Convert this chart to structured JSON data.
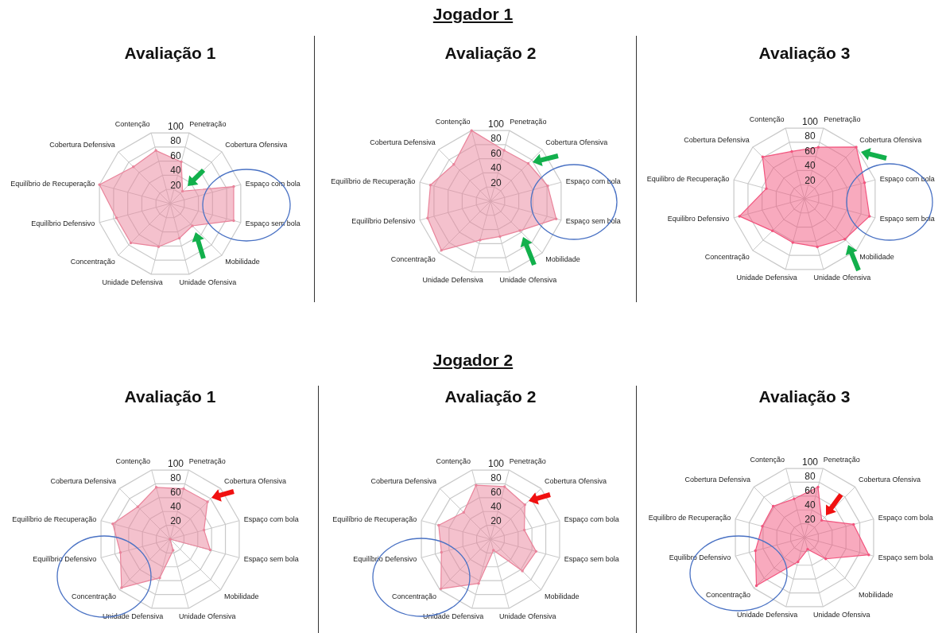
{
  "chart_data": [
    {
      "type": "radar",
      "title": "Avaliação 1",
      "annotations": [
        "Jogador 1"
      ],
      "categories": [
        "Contenção",
        "Penetração",
        "Cobertura Ofensiva",
        "Espaço com bola",
        "Espaço sem bola",
        "Mobilidade",
        "Unidade Ofensiva",
        "Unidade Defensiva",
        "Concentração",
        "Equilíbrio Defensivo",
        "Equilíbrio de Recuperação",
        "Cobertura Defensiva"
      ],
      "ylim": [
        0,
        100
      ],
      "yticks": [
        20,
        40,
        60,
        80,
        100
      ],
      "grid": true,
      "marker": "circle",
      "series": [
        {
          "color": "#e9849b",
          "values": [
            75,
            59,
            24,
            90,
            90,
            43,
            49,
            61,
            76,
            76,
            100,
            71
          ]
        }
      ]
    },
    {
      "type": "radar",
      "title": "Avaliação 2",
      "categories": [
        "Contenção",
        "Penetração",
        "Cobertura Ofensiva",
        "Espaço com bola",
        "Espaço sem bola",
        "Mobilidade",
        "Unidade Ofensiva",
        "Unidade Defensiva",
        "Concentração",
        "Equilíbrio Defensivo",
        "Equilíbrio de Recuperação",
        "Cobertura Defensiva"
      ],
      "ylim": [
        0,
        100
      ],
      "yticks": [
        20,
        40,
        60,
        80,
        100
      ],
      "grid": true,
      "marker": "circle",
      "series": [
        {
          "color": "#e9849b",
          "values": [
            100,
            72,
            73,
            81,
            93,
            57,
            50,
            55,
            95,
            89,
            85,
            71
          ]
        }
      ]
    },
    {
      "type": "radar",
      "title": "Avaliação 3",
      "categories": [
        "Contenção",
        "Penetração",
        "Cobertura Ofensiva",
        "Espaço com bola",
        "Espaço sem bola",
        "Mobilidade",
        "Unidade Ofensiva",
        "Unidade Defensiva",
        "Concentração",
        "Equilibro Defensivo",
        "Equilibro de Recuperação",
        "Cobertura Defensiva"
      ],
      "ylim": [
        0,
        100
      ],
      "yticks": [
        20,
        40,
        60,
        80,
        100
      ],
      "grid": true,
      "marker": "circle",
      "series": [
        {
          "color": "#f2557e",
          "values": [
            67,
            73,
            100,
            85,
            92,
            78,
            68,
            62,
            62,
            92,
            54,
            81
          ]
        }
      ]
    },
    {
      "type": "radar",
      "title": "Avaliação 1",
      "annotations": [
        "Jogador 2"
      ],
      "categories": [
        "Contenção",
        "Penetração",
        "Cobertura Ofensiva",
        "Espaço com bola",
        "Espaço sem bola",
        "Mobilidade",
        "Unidade Ofensiva",
        "Unidade Defensiva",
        "Concentração",
        "Equilíbrio Defensivo",
        "Equilíbrio de Recuperação",
        "Cobertura Defensiva"
      ],
      "ylim": [
        0,
        100
      ],
      "yticks": [
        20,
        40,
        60,
        80,
        100
      ],
      "grid": true,
      "marker": "circle",
      "series": [
        {
          "color": "#e9849b",
          "values": [
            75,
            73,
            74,
            49,
            58,
            0,
            16,
            56,
            96,
            72,
            83,
            64
          ]
        }
      ]
    },
    {
      "type": "radar",
      "title": "Avaliação 2",
      "categories": [
        "Contenção",
        "Penetração",
        "Cobertura Ofensiva",
        "Espaço com bola",
        "Espaço sem bola",
        "Mobilidade",
        "Unidade Ofensiva",
        "Unidade Defensiva",
        "Concentração",
        "Equilíbrio Defensivo",
        "Equilíbrio de Recuperação",
        "Cobertura Defensiva"
      ],
      "ylim": [
        0,
        100
      ],
      "yticks": [
        20,
        40,
        60,
        80,
        100
      ],
      "grid": true,
      "marker": "circle",
      "series": [
        {
          "color": "#e9849b",
          "values": [
            78,
            76,
            68,
            49,
            66,
            63,
            16,
            64,
            98,
            71,
            75,
            53
          ]
        }
      ]
    },
    {
      "type": "radar",
      "title": "Avaliação 3",
      "categories": [
        "Contenção",
        "Penetração",
        "Cobertura Ofensiva",
        "Espaço com bola",
        "Espaço sem bola",
        "Mobilidade",
        "Unidade Ofensiva",
        "Unidade Defensiva",
        "Concentração",
        "Equilibro Defensivo",
        "Equilibro de Recuperação",
        "Cobertura Defensiva"
      ],
      "ylim": [
        0,
        100
      ],
      "yticks": [
        20,
        40,
        60,
        80,
        100
      ],
      "grid": true,
      "marker": "circle",
      "series": [
        {
          "color": "#f2557e",
          "values": [
            56,
            73,
            34,
            71,
            93,
            42,
            17,
            35,
            95,
            71,
            61,
            62
          ]
        }
      ]
    }
  ]
}
